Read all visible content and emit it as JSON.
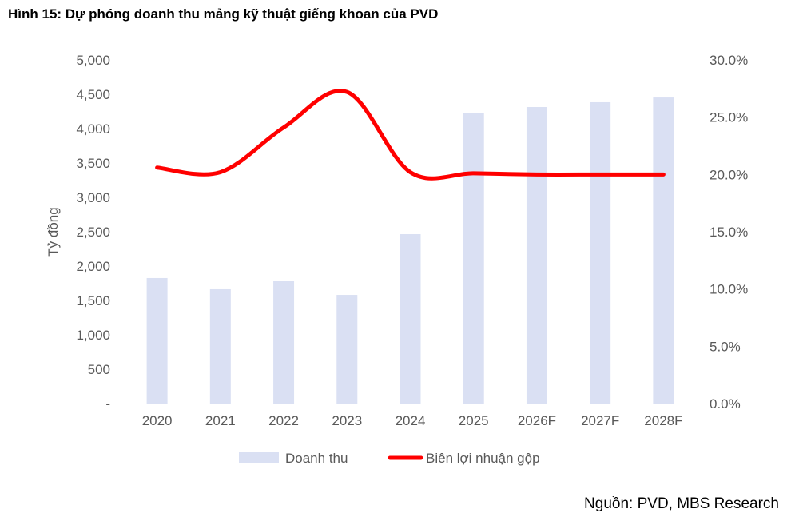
{
  "title": "Hình 15: Dự phóng doanh thu mảng kỹ thuật giếng khoan của PVD",
  "source": "Nguồn: PVD, MBS Research",
  "chart_data": {
    "type": "bar",
    "title": "Hình 15: Dự phóng doanh thu mảng kỹ thuật giếng khoan của PVD",
    "categories": [
      "2020",
      "2021",
      "2022",
      "2023",
      "2024",
      "2025",
      "2026F",
      "2027F",
      "2028F"
    ],
    "ylabel": "Tỷ đồng",
    "ylim": [
      0,
      5000
    ],
    "y2lim": [
      0,
      30
    ],
    "yticks": [
      "-",
      "500",
      "1,000",
      "1,500",
      "2,000",
      "2,500",
      "3,000",
      "3,500",
      "4,000",
      "4,500",
      "5,000"
    ],
    "y2ticks": [
      "0.0%",
      "5.0%",
      "10.0%",
      "15.0%",
      "20.0%",
      "25.0%",
      "30.0%"
    ],
    "grid": false,
    "legend_position": "bottom",
    "series": [
      {
        "name": "Doanh thu",
        "type": "bar",
        "axis": "left",
        "color": "#dae0f3",
        "values": [
          1826,
          1663,
          1779,
          1581,
          2465,
          4221,
          4314,
          4384,
          4453
        ]
      },
      {
        "name": "Biên lợi nhuận gộp",
        "type": "line",
        "axis": "right",
        "unit": "%",
        "color": "#ff0000",
        "values": [
          20.6,
          20.2,
          24.1,
          27.2,
          20.2,
          20.1,
          20.0,
          20.0,
          20.0
        ]
      }
    ]
  }
}
